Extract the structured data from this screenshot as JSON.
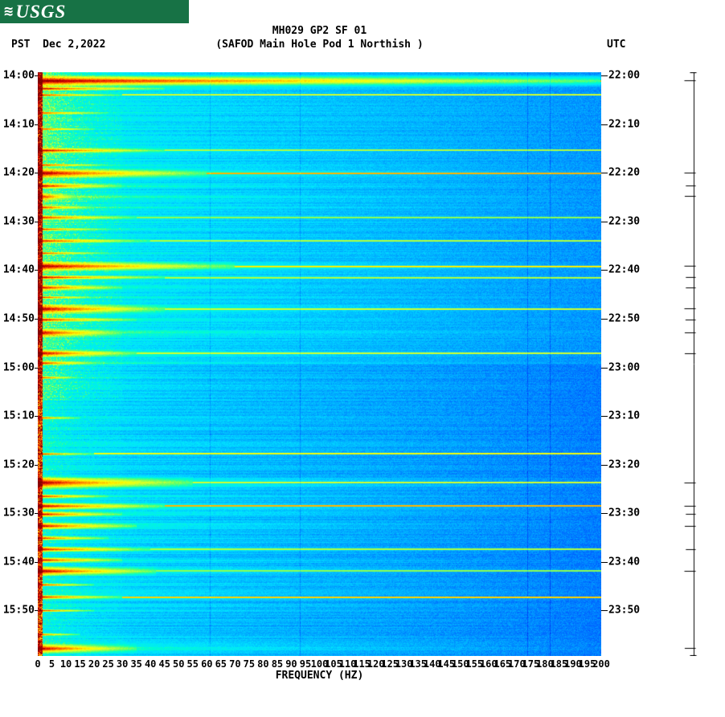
{
  "logo": {
    "wave": "≋",
    "text": "USGS",
    "bg_color": "#177245"
  },
  "header": {
    "title_line1": "MH029 GP2 SF 01",
    "title_line2": "(SAFOD Main Hole Pod 1 Northish )",
    "left_label": "PST  Dec 2,2022",
    "right_label": "UTC"
  },
  "chart_data": {
    "type": "heatmap",
    "title": "MH029 GP2 SF 01",
    "subtitle": "(SAFOD Main Hole Pod 1 Northish )",
    "xlabel": "FREQUENCY (HZ)",
    "xlim": [
      0,
      200
    ],
    "x_ticks": [
      0,
      5,
      10,
      15,
      20,
      25,
      30,
      35,
      40,
      45,
      50,
      55,
      60,
      65,
      70,
      75,
      80,
      85,
      90,
      95,
      100,
      105,
      110,
      115,
      120,
      125,
      130,
      135,
      140,
      145,
      150,
      155,
      160,
      165,
      170,
      175,
      180,
      185,
      190,
      195,
      200
    ],
    "time_axis": {
      "left_zone": "PST",
      "right_zone": "UTC",
      "date": "Dec 2,2022",
      "left_ticks": [
        "14:00",
        "14:10",
        "14:20",
        "14:30",
        "14:40",
        "14:50",
        "15:00",
        "15:10",
        "15:20",
        "15:30",
        "15:40",
        "15:50"
      ],
      "right_ticks": [
        "22:00",
        "22:10",
        "22:20",
        "22:30",
        "22:40",
        "22:50",
        "23:00",
        "23:10",
        "23:20",
        "23:30",
        "23:40",
        "23:50"
      ],
      "total_minutes": 120,
      "tick_interval_minutes": 10
    },
    "palette": [
      "#000080",
      "#0000CD",
      "#0055FF",
      "#00AAFF",
      "#00E5FF",
      "#00FFCC",
      "#66FF66",
      "#CCFF33",
      "#FFFF00",
      "#FFAA00",
      "#FF5500",
      "#CC0000",
      "#800000"
    ],
    "background": {
      "v0": 0.335,
      "v1": 0.215,
      "low": 0.13,
      "noise": 0.06
    },
    "grid_lines_hz": [
      61,
      93,
      174,
      182
    ],
    "events_format": [
      "minutes_after_start",
      "strength_0_1",
      "max_freq_hz",
      "half_height_px",
      "full_width_streak_0_1"
    ],
    "events": [
      [
        1.7,
        1.0,
        200,
        8,
        1.0
      ],
      [
        3.3,
        0.7,
        45,
        3,
        0
      ],
      [
        4.6,
        0.5,
        30,
        2,
        0.5
      ],
      [
        8.3,
        0.45,
        25,
        2,
        0
      ],
      [
        11.6,
        0.4,
        20,
        2,
        0
      ],
      [
        16.0,
        0.75,
        45,
        4,
        0.4
      ],
      [
        19.0,
        0.5,
        25,
        2,
        0
      ],
      [
        20.7,
        1.0,
        60,
        7,
        1.0
      ],
      [
        23.3,
        0.8,
        30,
        4,
        0
      ],
      [
        25.5,
        0.95,
        14,
        5,
        0
      ],
      [
        27.7,
        0.6,
        20,
        3,
        0
      ],
      [
        29.8,
        0.6,
        35,
        3,
        0.3
      ],
      [
        32.2,
        0.5,
        25,
        2,
        0
      ],
      [
        34.6,
        0.65,
        40,
        3,
        0.4
      ],
      [
        37.1,
        0.5,
        25,
        2,
        0
      ],
      [
        39.8,
        1.0,
        70,
        7,
        0.8
      ],
      [
        42.1,
        0.8,
        45,
        3,
        0.4
      ],
      [
        44.2,
        0.8,
        30,
        4,
        0
      ],
      [
        46.2,
        0.55,
        20,
        2,
        0
      ],
      [
        48.6,
        1.0,
        45,
        7,
        0.5
      ],
      [
        50.8,
        0.85,
        35,
        3,
        0
      ],
      [
        53.5,
        0.95,
        30,
        6,
        0
      ],
      [
        57.7,
        0.95,
        35,
        5,
        0.5
      ],
      [
        59.7,
        0.7,
        22,
        3,
        0
      ],
      [
        62.7,
        0.4,
        15,
        2,
        0
      ],
      [
        71.0,
        0.35,
        15,
        2,
        0
      ],
      [
        78.4,
        0.5,
        20,
        2,
        0.7
      ],
      [
        84.3,
        1.0,
        55,
        9,
        0.5
      ],
      [
        87.1,
        0.65,
        25,
        3,
        0
      ],
      [
        89.1,
        1.0,
        45,
        5,
        1.0
      ],
      [
        90.8,
        0.8,
        30,
        4,
        0
      ],
      [
        93.2,
        0.95,
        35,
        5,
        0
      ],
      [
        95.7,
        0.6,
        25,
        3,
        0
      ],
      [
        98.0,
        0.8,
        40,
        4,
        0.4
      ],
      [
        100.2,
        0.75,
        30,
        4,
        0
      ],
      [
        102.5,
        1.0,
        42,
        7,
        0.3
      ],
      [
        105.3,
        0.5,
        20,
        2,
        0
      ],
      [
        107.8,
        0.7,
        30,
        3,
        0.9
      ],
      [
        110.6,
        0.45,
        20,
        2,
        0
      ],
      [
        115.5,
        0.35,
        15,
        2,
        0
      ],
      [
        118.4,
        0.95,
        35,
        7,
        0
      ]
    ]
  }
}
